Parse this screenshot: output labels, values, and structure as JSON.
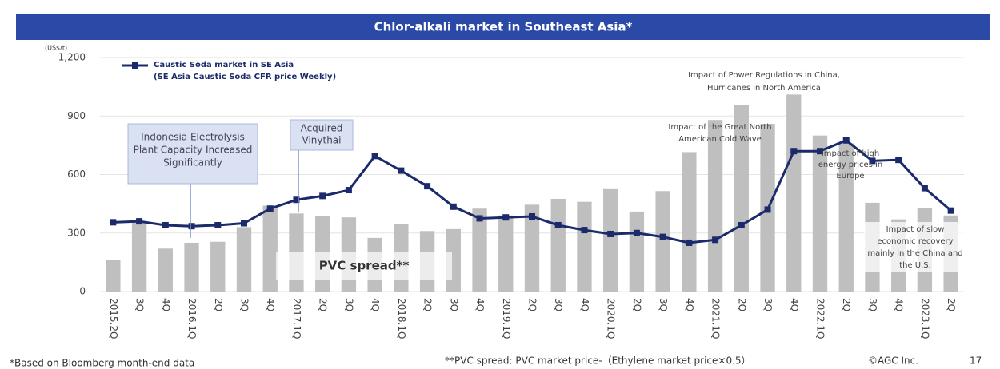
{
  "chart_data": {
    "type": "bar_line",
    "title": "Chlor-alkali market in Southeast Asia*",
    "y_unit": "(US$/t)",
    "categories": [
      "2015.2Q",
      "3Q",
      "4Q",
      "2016.1Q",
      "2Q",
      "3Q",
      "4Q",
      "2017.1Q",
      "2Q",
      "3Q",
      "4Q",
      "2018.1Q",
      "2Q",
      "3Q",
      "4Q",
      "2019.1Q",
      "2Q",
      "3Q",
      "4Q",
      "2020.1Q",
      "2Q",
      "3Q",
      "4Q",
      "2021.1Q",
      "2Q",
      "3Q",
      "4Q",
      "2022.1Q",
      "2Q",
      "3Q",
      "4Q",
      "2023.1Q",
      "2Q"
    ],
    "series": [
      {
        "name": "PVC spread**",
        "type": "bar",
        "color": "#bfbfbf",
        "values": [
          160,
          360,
          220,
          250,
          255,
          330,
          440,
          400,
          385,
          380,
          275,
          345,
          310,
          320,
          425,
          390,
          445,
          475,
          460,
          525,
          410,
          515,
          715,
          880,
          955,
          860,
          1010,
          800,
          760,
          455,
          370,
          430,
          390
        ]
      },
      {
        "name": "Caustic Soda market in SE Asia",
        "note": "(SE Asia Caustic Soda CFR price Weekly)",
        "type": "line",
        "color": "#1b2a6b",
        "values": [
          355,
          360,
          340,
          335,
          340,
          350,
          425,
          470,
          490,
          520,
          695,
          620,
          540,
          435,
          375,
          380,
          385,
          340,
          315,
          295,
          300,
          280,
          250,
          265,
          340,
          420,
          720,
          720,
          775,
          670,
          675,
          530,
          415
        ]
      }
    ],
    "ylim": [
      0,
      1200
    ],
    "yticks": [
      0,
      300,
      600,
      900,
      {
        "value": 1200,
        "label": "1,200"
      }
    ],
    "grid": true,
    "annotations": [
      [
        "Indonesia Electrolysis",
        "Plant Capacity Increased",
        "Significantly"
      ],
      [
        "Acquired",
        "Vinythai"
      ],
      [
        "Impact of Power Regulations in China,",
        "Hurricanes in North America"
      ],
      [
        "Impact of the Great North",
        "American Cold Wave"
      ],
      [
        "Impact of high",
        "energy prices in",
        "Europe"
      ],
      [
        "Impact of slow",
        "economic recovery",
        "mainly in the China and",
        "the U.S."
      ]
    ]
  },
  "footer": {
    "left": "*Based on Bloomberg month-end data",
    "middle": "**PVC spread: PVC market price-（Ethylene market price×0.5）",
    "copyright": "©AGC Inc.",
    "page": "17"
  }
}
